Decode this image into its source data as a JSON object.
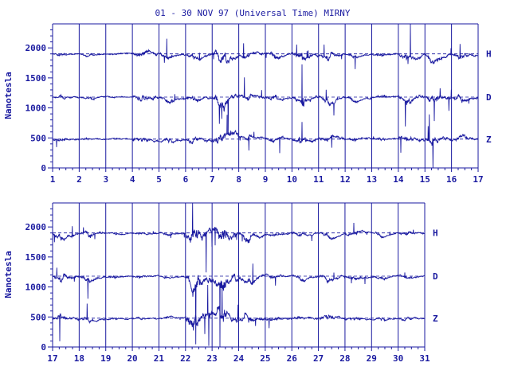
{
  "chart_data": {
    "type": "line",
    "title": "01 - 30 NOV 97 (Universal Time) MIRNY",
    "ylabel": "Nanotesla",
    "colors": {
      "trace": "#1a1aa0",
      "axis": "#1a1aa0"
    },
    "grid": "vertical lines at each day",
    "panels": [
      {
        "x_range": [
          1,
          17
        ],
        "x_ticks": [
          "1",
          "2",
          "3",
          "4",
          "5",
          "6",
          "7",
          "8",
          "9",
          "10",
          "11",
          "12",
          "13",
          "14",
          "15",
          "16",
          "17"
        ],
        "ylim": [
          0,
          2400
        ],
        "y_ticks": [
          "0",
          "500",
          "1000",
          "1500",
          "2000"
        ],
        "series": [
          {
            "name": "H",
            "baseline": 1900
          },
          {
            "name": "D",
            "baseline": 1180
          },
          {
            "name": "Z",
            "baseline": 480
          }
        ]
      },
      {
        "x_range": [
          17,
          31
        ],
        "x_ticks": [
          "17",
          "18",
          "19",
          "20",
          "21",
          "22",
          "23",
          "24",
          "25",
          "26",
          "27",
          "28",
          "29",
          "30",
          "31"
        ],
        "ylim": [
          0,
          2400
        ],
        "y_ticks": [
          "0",
          "500",
          "1000",
          "1500",
          "2000"
        ],
        "series": [
          {
            "name": "H",
            "baseline": 1900
          },
          {
            "name": "D",
            "baseline": 1180
          },
          {
            "name": "Z",
            "baseline": 480
          }
        ]
      }
    ]
  }
}
